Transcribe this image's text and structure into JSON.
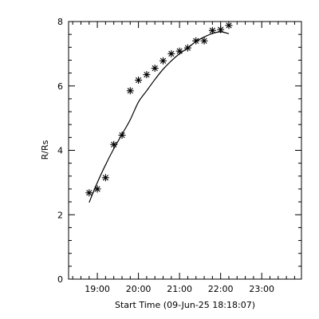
{
  "chart_data": {
    "type": "scatter",
    "xlabel": "Start Time (09-Jun-25 18:18:07)",
    "ylabel": "R/Rs",
    "xlim": [
      "18:18",
      "23:58"
    ],
    "ylim": [
      0,
      8
    ],
    "x_tick_labels": [
      "19:00",
      "20:00",
      "21:00",
      "22:00",
      "23:00"
    ],
    "y_tick_labels": [
      "0",
      "2",
      "4",
      "6",
      "8"
    ],
    "grid": false,
    "series": [
      {
        "marker": "asterisk",
        "points": [
          {
            "x": "18:48",
            "y": 2.68
          },
          {
            "x": "19:00",
            "y": 2.8
          },
          {
            "x": "19:12",
            "y": 3.15
          },
          {
            "x": "19:24",
            "y": 4.18
          },
          {
            "x": "19:36",
            "y": 4.47
          },
          {
            "x": "19:48",
            "y": 5.85
          },
          {
            "x": "20:00",
            "y": 6.18
          },
          {
            "x": "20:12",
            "y": 6.35
          },
          {
            "x": "20:24",
            "y": 6.55
          },
          {
            "x": "20:36",
            "y": 6.78
          },
          {
            "x": "20:48",
            "y": 7.0
          },
          {
            "x": "21:00",
            "y": 7.08
          },
          {
            "x": "21:12",
            "y": 7.18
          },
          {
            "x": "21:24",
            "y": 7.4
          },
          {
            "x": "21:36",
            "y": 7.4
          },
          {
            "x": "21:48",
            "y": 7.72
          },
          {
            "x": "22:00",
            "y": 7.75
          },
          {
            "x": "22:12",
            "y": 7.88
          }
        ]
      },
      {
        "type": "line",
        "points": [
          {
            "x": "18:48",
            "y": 2.38
          },
          {
            "x": "19:00",
            "y": 3.0
          },
          {
            "x": "19:12",
            "y": 3.55
          },
          {
            "x": "19:24",
            "y": 4.05
          },
          {
            "x": "19:36",
            "y": 4.5
          },
          {
            "x": "19:48",
            "y": 4.95
          },
          {
            "x": "20:00",
            "y": 5.5
          },
          {
            "x": "20:12",
            "y": 5.85
          },
          {
            "x": "20:24",
            "y": 6.2
          },
          {
            "x": "20:36",
            "y": 6.52
          },
          {
            "x": "20:48",
            "y": 6.78
          },
          {
            "x": "21:00",
            "y": 7.0
          },
          {
            "x": "21:12",
            "y": 7.18
          },
          {
            "x": "21:24",
            "y": 7.38
          },
          {
            "x": "21:36",
            "y": 7.52
          },
          {
            "x": "21:48",
            "y": 7.63
          },
          {
            "x": "22:00",
            "y": 7.68
          },
          {
            "x": "22:12",
            "y": 7.62
          }
        ]
      }
    ]
  }
}
